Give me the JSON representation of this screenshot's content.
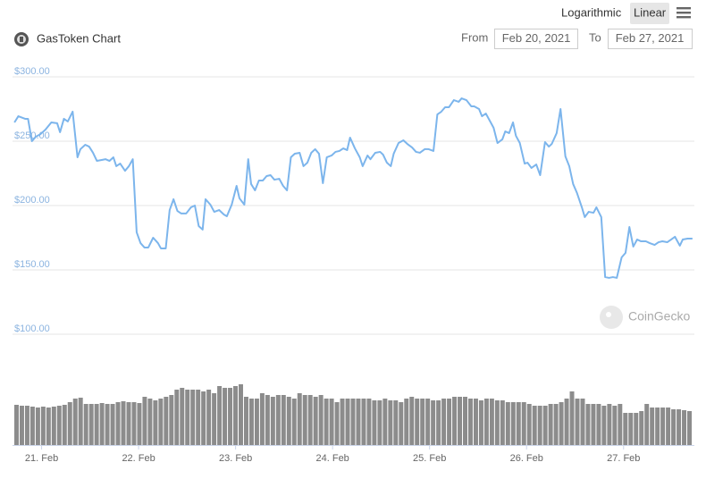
{
  "chart_data": {
    "type": "line",
    "title": "GasToken Chart",
    "toolbar": {
      "scale_options": [
        "Logarithmic",
        "Linear"
      ],
      "selected": 1
    },
    "range": {
      "from_label": "From",
      "from": "Feb 20, 2021",
      "to_label": "To",
      "to": "Feb 27, 2021"
    },
    "watermark": "CoinGecko",
    "color": "#7cb5ec",
    "grid": true,
    "ylim": [
      100,
      300
    ],
    "yticks": [
      {
        "value": 100,
        "label": "$100.00"
      },
      {
        "value": 150,
        "label": "$150.00"
      },
      {
        "value": 200,
        "label": "$200.00"
      },
      {
        "value": 250,
        "label": "$250.00"
      },
      {
        "value": 300,
        "label": "$300.00"
      }
    ],
    "xlim": [
      20.7,
      27.73
    ],
    "xticks": [
      {
        "value": 21,
        "label": "21. Feb"
      },
      {
        "value": 22,
        "label": "22. Feb"
      },
      {
        "value": 23,
        "label": "23. Feb"
      },
      {
        "value": 24,
        "label": "24. Feb"
      },
      {
        "value": 25,
        "label": "25. Feb"
      },
      {
        "value": 26,
        "label": "26. Feb"
      },
      {
        "value": 27,
        "label": "27. Feb"
      }
    ],
    "x": [
      20.72,
      20.76,
      20.83,
      20.86,
      20.9,
      20.94,
      20.99,
      21.04,
      21.1,
      21.16,
      21.19,
      21.23,
      21.27,
      21.32,
      21.37,
      21.4,
      21.45,
      21.49,
      21.53,
      21.57,
      21.62,
      21.66,
      21.7,
      21.74,
      21.77,
      21.81,
      21.86,
      21.9,
      21.94,
      21.98,
      22.02,
      22.06,
      22.1,
      22.15,
      22.2,
      22.23,
      22.28,
      22.32,
      22.36,
      22.4,
      22.44,
      22.49,
      22.54,
      22.58,
      22.62,
      22.66,
      22.69,
      22.74,
      22.78,
      22.83,
      22.88,
      22.91,
      22.96,
      23.01,
      23.04,
      23.09,
      23.13,
      23.16,
      23.2,
      23.24,
      23.28,
      23.32,
      23.36,
      23.4,
      23.45,
      23.49,
      23.53,
      23.57,
      23.61,
      23.66,
      23.7,
      23.74,
      23.78,
      23.82,
      23.86,
      23.9,
      23.94,
      23.99,
      24.03,
      24.07,
      24.11,
      24.15,
      24.18,
      24.23,
      24.28,
      24.31,
      24.36,
      24.39,
      24.44,
      24.49,
      24.52,
      24.56,
      24.6,
      24.63,
      24.68,
      24.73,
      24.77,
      24.82,
      24.86,
      24.9,
      24.95,
      24.99,
      25.04,
      25.08,
      25.12,
      25.16,
      25.2,
      25.25,
      25.3,
      25.33,
      25.38,
      25.43,
      25.46,
      25.51,
      25.54,
      25.58,
      25.62,
      25.66,
      25.7,
      25.75,
      25.78,
      25.82,
      25.86,
      25.89,
      25.93,
      25.98,
      26.01,
      26.05,
      26.1,
      26.14,
      26.19,
      26.23,
      26.26,
      26.31,
      26.35,
      26.4,
      26.44,
      26.48,
      26.52,
      26.57,
      26.6,
      26.64,
      26.69,
      26.72,
      26.77,
      26.81,
      26.85,
      26.89,
      26.93,
      26.98,
      27.02,
      27.06,
      27.1,
      27.14,
      27.18,
      27.23,
      27.27,
      27.32,
      27.36,
      27.4,
      27.45,
      27.49,
      27.53,
      27.58,
      27.61,
      27.66,
      27.71
    ],
    "values": [
      264.6,
      269.4,
      267.4,
      267.4,
      250,
      253.5,
      255.6,
      259,
      264.6,
      264,
      257,
      267.4,
      265.3,
      273,
      237.5,
      243.8,
      247.2,
      245.8,
      241,
      234.7,
      235.4,
      236,
      234.7,
      237.5,
      230.6,
      232.6,
      227,
      230.6,
      236,
      179.2,
      170.8,
      167.4,
      167.4,
      175,
      170.8,
      166.7,
      166.7,
      196.5,
      204.9,
      195.8,
      193.8,
      193.8,
      198.6,
      200,
      184,
      181.3,
      204.9,
      200.7,
      195.1,
      196.5,
      193,
      191.7,
      200.7,
      215.3,
      205.6,
      200.7,
      236,
      216.7,
      211.8,
      219.4,
      219.4,
      222.9,
      223.6,
      220.1,
      220.8,
      215.3,
      211.8,
      237.5,
      240.3,
      241,
      230.6,
      233.3,
      241,
      243.8,
      240.3,
      217.4,
      237.5,
      238.9,
      241.7,
      242.4,
      244.4,
      243.1,
      252.8,
      244.4,
      237.5,
      230.6,
      238.9,
      236,
      241,
      241.7,
      239.6,
      233.3,
      230.6,
      240.3,
      248.6,
      250.7,
      247.9,
      245.1,
      241.7,
      241,
      243.8,
      243.8,
      242.4,
      270.8,
      272.9,
      276.4,
      276.4,
      281.9,
      280.6,
      283.3,
      281.9,
      277.1,
      277.1,
      275,
      269.4,
      271.5,
      266,
      260.4,
      248.6,
      251.4,
      257.6,
      256.3,
      264.6,
      254.2,
      248.6,
      232.6,
      233.3,
      229.2,
      231.9,
      223.6,
      249.3,
      245.8,
      247.9,
      256.3,
      275,
      238.2,
      230.6,
      216.7,
      209.7,
      198.6,
      191,
      195.1,
      194.4,
      198.6,
      191,
      144.4,
      143.8,
      144.4,
      143.8,
      159.7,
      163.2,
      183.3,
      168.1,
      173.6,
      172.2,
      172.2,
      170.8,
      169.4,
      171.5,
      172.2,
      171.5,
      173.6,
      175.7,
      168.8,
      173.6,
      174.3,
      174.3
    ],
    "volume": {
      "color": "#8c8c8c",
      "ylim": [
        0,
        100
      ],
      "values": [
        45,
        44,
        44,
        43,
        42,
        43,
        42,
        43,
        44,
        45,
        48,
        52,
        53,
        46,
        46,
        46,
        47,
        46,
        46,
        48,
        49,
        48,
        48,
        47,
        54,
        52,
        50,
        52,
        54,
        56,
        62,
        64,
        62,
        62,
        62,
        60,
        62,
        58,
        66,
        64,
        64,
        66,
        68,
        54,
        52,
        52,
        58,
        56,
        54,
        56,
        56,
        54,
        52,
        58,
        56,
        56,
        54,
        56,
        52,
        52,
        48,
        52,
        52,
        52,
        52,
        52,
        52,
        50,
        50,
        52,
        50,
        50,
        48,
        52,
        54,
        52,
        52,
        52,
        50,
        50,
        52,
        52,
        54,
        54,
        54,
        52,
        52,
        50,
        52,
        52,
        50,
        50,
        48,
        48,
        48,
        48,
        46,
        44,
        44,
        44,
        46,
        46,
        48,
        52,
        60,
        52,
        52,
        46,
        46,
        46,
        44,
        46,
        44,
        46,
        36,
        36,
        36,
        38,
        46,
        42,
        42,
        42,
        42,
        40,
        40,
        39,
        38
      ]
    }
  }
}
